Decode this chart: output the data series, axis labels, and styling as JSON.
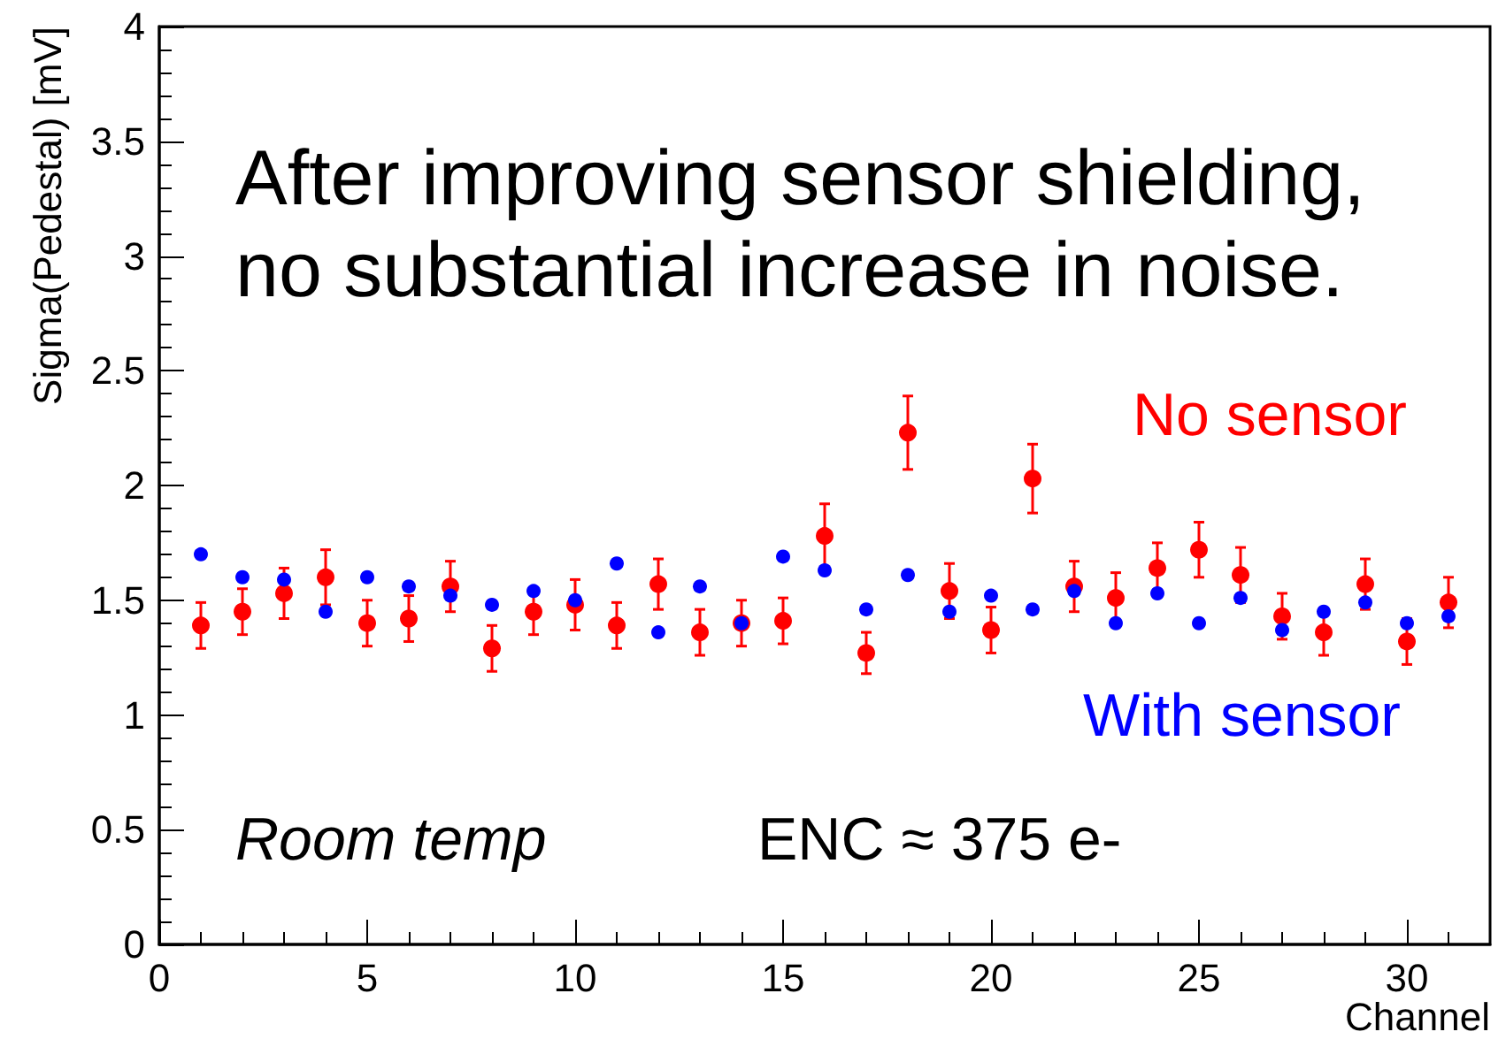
{
  "chart_data": {
    "type": "scatter",
    "xlabel": "Channel",
    "ylabel": "Sigma(Pedestal) [mV]",
    "x": [
      1,
      2,
      3,
      4,
      5,
      6,
      7,
      8,
      9,
      10,
      11,
      12,
      13,
      14,
      15,
      16,
      17,
      18,
      19,
      20,
      21,
      22,
      23,
      24,
      25,
      26,
      27,
      28,
      29,
      30,
      31
    ],
    "series": [
      {
        "name": "With sensor",
        "color": "#0000ff",
        "values": [
          1.7,
          1.6,
          1.59,
          1.45,
          1.6,
          1.56,
          1.52,
          1.48,
          1.54,
          1.5,
          1.66,
          1.36,
          1.56,
          1.4,
          1.69,
          1.63,
          1.46,
          1.61,
          1.45,
          1.52,
          1.46,
          1.54,
          1.4,
          1.53,
          1.4,
          1.51,
          1.37,
          1.45,
          1.49,
          1.4,
          1.43
        ]
      },
      {
        "name": "No sensor",
        "color": "#ff0000",
        "values": [
          1.39,
          1.45,
          1.53,
          1.6,
          1.4,
          1.42,
          1.56,
          1.29,
          1.45,
          1.48,
          1.39,
          1.57,
          1.36,
          1.4,
          1.41,
          1.78,
          1.27,
          2.23,
          1.54,
          1.37,
          2.03,
          1.56,
          1.51,
          1.64,
          1.72,
          1.61,
          1.43,
          1.36,
          1.57,
          1.32,
          1.49
        ],
        "errors": [
          0.1,
          0.1,
          0.11,
          0.12,
          0.1,
          0.1,
          0.11,
          0.1,
          0.1,
          0.11,
          0.1,
          0.11,
          0.1,
          0.1,
          0.1,
          0.14,
          0.09,
          0.16,
          0.12,
          0.1,
          0.15,
          0.11,
          0.11,
          0.11,
          0.12,
          0.12,
          0.1,
          0.1,
          0.11,
          0.1,
          0.11
        ]
      }
    ],
    "xlim": [
      0,
      32
    ],
    "xticks": [
      0,
      5,
      10,
      15,
      20,
      25,
      30
    ],
    "ylim": [
      0,
      4
    ],
    "yticks": [
      0,
      0.5,
      1,
      1.5,
      2,
      2.5,
      3,
      3.5,
      4
    ],
    "grid": false,
    "legend": false,
    "marker": "circle",
    "annotations": [
      "After improving sensor shielding,\nno substantial increase in noise.",
      "Room temp",
      "ENC ≈ 375 e-"
    ]
  }
}
